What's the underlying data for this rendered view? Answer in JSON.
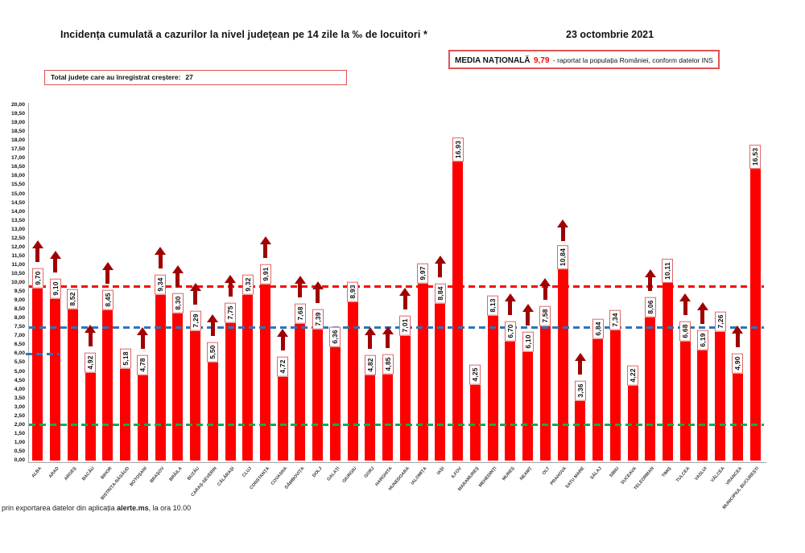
{
  "header": {
    "title": "Incidența cumulată a cazurilor la nivel județean pe 14 zile la ‰ de locuitori *",
    "date": "23 octombrie 2021",
    "media_box": {
      "label": "MEDIA NAȚIONALĂ",
      "value": "9,79",
      "suffix": "-  raportat la populația României, conform datelor INS"
    },
    "total_box": {
      "label": "Total județe care au înregistrat creștere:",
      "value": "27"
    }
  },
  "footer": {
    "text_before": "prin exportarea datelor din aplicația ",
    "app_name": "alerte.ms",
    "text_after": ", la ora 10.00"
  },
  "chart_data": {
    "type": "bar",
    "title": "Incidența cumulată a cazurilor la nivel județean pe 14 zile la ‰ de locuitori *",
    "xlabel": "",
    "ylabel": "",
    "ylim": [
      0,
      20
    ],
    "ytick_step": 0.5,
    "decimal_separator": ",",
    "grid": false,
    "bar_color": "#ff0000",
    "value_box_border_color": "#e06666",
    "rise_arrow_color": "#a00000",
    "reference_lines": [
      {
        "name": "national-average-line",
        "value": 9.79,
        "color": "#ff0000",
        "style": "dashed"
      },
      {
        "name": "blue-threshold-line",
        "value": 7.5,
        "color": "#2e75b6",
        "style": "dashed"
      },
      {
        "name": "blue-partial-segment",
        "value": 6.0,
        "color": "#2e75b6",
        "style": "dashed",
        "partial": true
      },
      {
        "name": "green-threshold-line",
        "value": 2.0,
        "color": "#00b050",
        "style": "dashed"
      }
    ],
    "series": [
      {
        "name": "ALBA",
        "display": "9,70",
        "value": 9.7,
        "rise": true
      },
      {
        "name": "ARAD",
        "display": "9,10",
        "value": 9.1,
        "rise": true
      },
      {
        "name": "ARGEȘ",
        "display": "8,52",
        "value": 8.52,
        "rise": false
      },
      {
        "name": "BACĂU",
        "display": "4,92",
        "value": 4.92,
        "rise": true
      },
      {
        "name": "BIHOR",
        "display": "8,45",
        "value": 8.45,
        "rise": true
      },
      {
        "name": "BISTRIȚA-NĂSĂUD",
        "display": "5,18",
        "value": 5.18,
        "rise": false
      },
      {
        "name": "BOTOȘANI",
        "display": "4,78",
        "value": 4.78,
        "rise": true
      },
      {
        "name": "BRAȘOV",
        "display": "9,34",
        "value": 9.34,
        "rise": true
      },
      {
        "name": "BRĂILA",
        "display": "8,30",
        "value": 8.3,
        "rise": true
      },
      {
        "name": "BUZĂU",
        "display": "7,29",
        "value": 7.29,
        "rise": true
      },
      {
        "name": "CARAȘ-SEVERIN",
        "display": "5,50",
        "value": 5.5,
        "rise": true
      },
      {
        "name": "CĂLĂRAȘI",
        "display": "7,75",
        "value": 7.75,
        "rise": true
      },
      {
        "name": "CLUJ",
        "display": "9,32",
        "value": 9.32,
        "rise": false
      },
      {
        "name": "CONSTANȚA",
        "display": "9,91",
        "value": 9.91,
        "rise": true
      },
      {
        "name": "COVASNA",
        "display": "4,72",
        "value": 4.72,
        "rise": true
      },
      {
        "name": "DÂMBOVIȚA",
        "display": "7,68",
        "value": 7.68,
        "rise": true
      },
      {
        "name": "DOLJ",
        "display": "7,39",
        "value": 7.39,
        "rise": true
      },
      {
        "name": "GALAȚI",
        "display": "6,36",
        "value": 6.36,
        "rise": false
      },
      {
        "name": "GIURGIU",
        "display": "8,93",
        "value": 8.93,
        "rise": false
      },
      {
        "name": "GORJ",
        "display": "4,82",
        "value": 4.82,
        "rise": true
      },
      {
        "name": "HARGHITA",
        "display": "4,85",
        "value": 4.85,
        "rise": true
      },
      {
        "name": "HUNEDOARA",
        "display": "7,01",
        "value": 7.01,
        "rise": true
      },
      {
        "name": "IALOMIȚA",
        "display": "9,97",
        "value": 9.97,
        "rise": false
      },
      {
        "name": "IAȘI",
        "display": "8,84",
        "value": 8.84,
        "rise": true
      },
      {
        "name": "ILFOV",
        "display": "16,93",
        "value": 16.93,
        "rise": false
      },
      {
        "name": "MARAMUREȘ",
        "display": "4,25",
        "value": 4.25,
        "rise": false
      },
      {
        "name": "MEHEDINȚI",
        "display": "8,13",
        "value": 8.13,
        "rise": false
      },
      {
        "name": "MUREȘ",
        "display": "6,70",
        "value": 6.7,
        "rise": true
      },
      {
        "name": "NEAMȚ",
        "display": "6,10",
        "value": 6.1,
        "rise": true
      },
      {
        "name": "OLT",
        "display": "7,58",
        "value": 7.58,
        "rise": true
      },
      {
        "name": "PRAHOVA",
        "display": "10,84",
        "value": 10.84,
        "rise": true
      },
      {
        "name": "SATU MARE",
        "display": "3,36",
        "value": 3.36,
        "rise": true
      },
      {
        "name": "SĂLAJ",
        "display": "6,84",
        "value": 6.84,
        "rise": false
      },
      {
        "name": "SIBIU",
        "display": "7,34",
        "value": 7.34,
        "rise": false
      },
      {
        "name": "SUCEAVA",
        "display": "4,22",
        "value": 4.22,
        "rise": false
      },
      {
        "name": "TELEORMAN",
        "display": "8,06",
        "value": 8.06,
        "rise": true
      },
      {
        "name": "TIMIȘ",
        "display": "10,11",
        "value": 10.11,
        "rise": false
      },
      {
        "name": "TULCEA",
        "display": "6,68",
        "value": 6.68,
        "rise": true
      },
      {
        "name": "VASLUI",
        "display": "6,19",
        "value": 6.19,
        "rise": true
      },
      {
        "name": "VÂLCEA",
        "display": "7,26",
        "value": 7.26,
        "rise": false
      },
      {
        "name": "VRANCEA",
        "display": "4,90",
        "value": 4.9,
        "rise": true
      },
      {
        "name": "MUNICIPIUL BUCUREȘTI",
        "display": "16,53",
        "value": 16.53,
        "rise": false
      }
    ]
  }
}
